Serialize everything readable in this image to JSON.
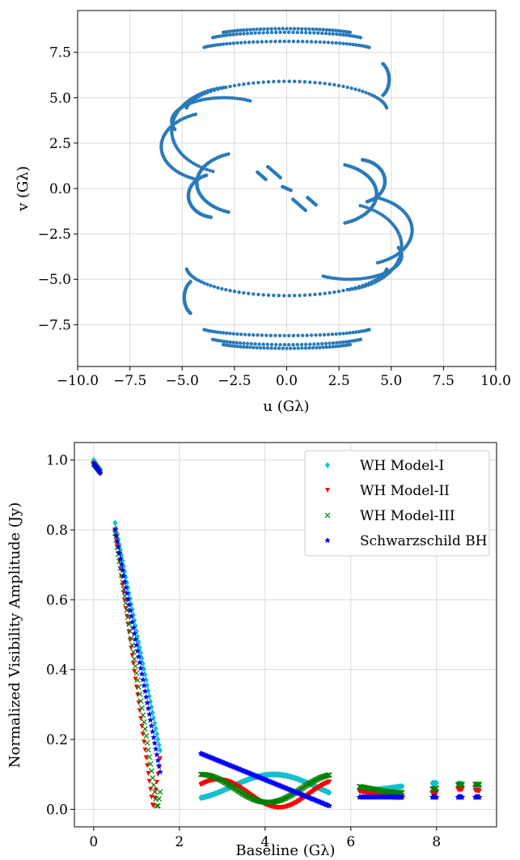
{
  "chart_data": [
    {
      "type": "scatter",
      "title": "",
      "xlabel": "u (Gλ)",
      "ylabel": "v (Gλ)",
      "xlim": [
        -10,
        10
      ],
      "ylim": [
        -9.8,
        9.8
      ],
      "xticks": [
        "−10.0",
        "−7.5",
        "−5.0",
        "−2.5",
        "0.0",
        "2.5",
        "5.0",
        "7.5",
        "10.0"
      ],
      "yticks": [
        "7.5",
        "5.0",
        "2.5",
        "0.0",
        "−2.5",
        "−5.0",
        "−7.5"
      ],
      "grid": true,
      "marker_color": "#2a7ab9",
      "description_of_tracks": [
        {
          "cx": 0,
          "cy": 7.6,
          "rx": 4.2,
          "ry": 0.5,
          "from": 20,
          "to": 160
        },
        {
          "cx": 0,
          "cy": 8.1,
          "rx": 3.9,
          "ry": 0.5,
          "from": 25,
          "to": 155
        },
        {
          "cx": 0,
          "cy": 8.4,
          "rx": 3.5,
          "ry": 0.4,
          "from": 30,
          "to": 150
        },
        {
          "cx": 0,
          "cy": 4.3,
          "rx": 4.8,
          "ry": 1.6,
          "from": 5,
          "to": 175
        },
        {
          "cx": -3.0,
          "cy": 3.7,
          "rx": 2.5,
          "ry": 1.3,
          "from": 60,
          "to": 200
        },
        {
          "cx": -2.5,
          "cy": 3.2,
          "rx": 3.0,
          "ry": 2.4,
          "from": 100,
          "to": 250
        },
        {
          "cx": 4.3,
          "cy": 6.0,
          "rx": 0.6,
          "ry": 1.0,
          "from": -60,
          "to": 60
        },
        {
          "cx": -3.5,
          "cy": 2.3,
          "rx": 2.5,
          "ry": 1.9,
          "from": 110,
          "to": 250
        },
        {
          "cx": 3.4,
          "cy": 0.4,
          "rx": 1.3,
          "ry": 1.2,
          "from": -70,
          "to": 80
        },
        {
          "cx": -3.4,
          "cy": -0.4,
          "rx": 1.3,
          "ry": 1.2,
          "from": 110,
          "to": 260
        },
        {
          "cx": -2.0,
          "cy": 0.3,
          "rx": 2.3,
          "ry": 1.7,
          "from": 110,
          "to": 250
        },
        {
          "cx": 2.0,
          "cy": -0.3,
          "rx": 2.3,
          "ry": 1.7,
          "from": -70,
          "to": 70
        }
      ]
    },
    {
      "type": "scatter",
      "title": "",
      "xlabel": "Baseline (Gλ)",
      "ylabel": "Normalized Visibility Amplitude (Jy)",
      "xlim": [
        -0.45,
        9.4
      ],
      "ylim": [
        -0.05,
        1.05
      ],
      "xticks": [
        "0",
        "2",
        "4",
        "6",
        "8"
      ],
      "yticks": [
        "0.0",
        "0.2",
        "0.4",
        "0.6",
        "0.8",
        "1.0"
      ],
      "grid": true,
      "legend_position": "top-right",
      "series": [
        {
          "name": "WH Model-I",
          "color": "#17becf",
          "marker": "diamond"
        },
        {
          "name": "WH Model-II",
          "color": "#ff0000",
          "marker": "triangle-down"
        },
        {
          "name": "WH Model-III",
          "color": "#008000",
          "marker": "x"
        },
        {
          "name": "Schwarzschild BH",
          "color": "#0000ff",
          "marker": "star"
        }
      ],
      "segments": [
        {
          "x": [
            0.0,
            0.15
          ],
          "groups": 4
        },
        {
          "x": [
            0.5,
            1.55
          ],
          "groups": 4
        },
        {
          "x": [
            2.5,
            5.5
          ],
          "groups": 4
        },
        {
          "x": [
            6.2,
            7.2
          ],
          "groups": 4
        },
        {
          "x": [
            7.9,
            8.0
          ],
          "groups": 4
        },
        {
          "x": [
            8.5,
            8.6
          ],
          "groups": 4
        },
        {
          "x": [
            8.9,
            9.0
          ],
          "groups": 4
        }
      ]
    }
  ]
}
